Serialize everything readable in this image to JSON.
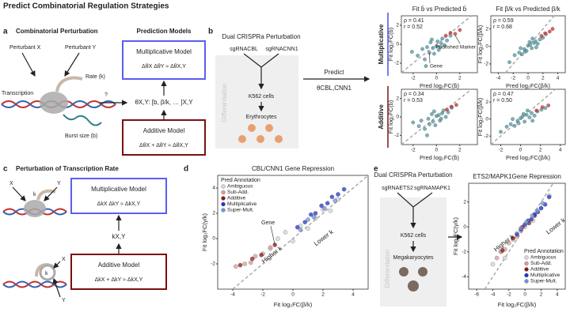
{
  "title": "Predict Combinatorial Regulation Strategies",
  "panel_a": {
    "label": "a",
    "heading": "Combinatorial Perturbation",
    "models_heading": "Prediction Models",
    "perturbant_x": "Perturbant X",
    "perturbant_y": "Perturbant Y",
    "rate": "Rate (k)",
    "transcription": "Transcription",
    "burst": "Burst size (b)",
    "question": "?",
    "mult_title": "Multiplicative Model",
    "mult_formula": "ΔθX ΔθY ≈ ΔθX,Y",
    "param": "θX,Y: [b, β/k, … ]X,Y",
    "add_title": "Additive Model",
    "add_formula": "ΔθX + ΔθY ≈ ΔθX,Y"
  },
  "panel_b": {
    "label": "b",
    "heading": "Dual CRISPRa Perturbation",
    "sgrna_1": "sgRNACBL",
    "sgrna_2": "sgRNACNN1",
    "cells": "K562 cells",
    "differentiation": "Differentiation",
    "product": "Erythrocytes",
    "predict": "Predict",
    "param": "θCBL,CNN1"
  },
  "panel_c": {
    "label": "c",
    "heading": "Perturbation of Transcription Rate",
    "x": "X",
    "y": "Y",
    "k": "k",
    "x2": "X",
    "y2": "Y",
    "k2": "k",
    "mult_title": "Multiplicative Model",
    "mult_formula": "ΔkX ΔkY ≈ ΔkX,Y",
    "rate": "kX,Y",
    "add_title": "Additive Model",
    "add_formula": "ΔkX + ΔkY ≈ ΔkX,Y"
  },
  "panel_d": {
    "label": "d"
  },
  "panel_e": {
    "label": "e",
    "heading": "Dual CRISPRa Perturbation",
    "sgrna_1": "sgRNAETS2",
    "sgrna_2": "sgRNAMAPK1",
    "cells": "K562 cells",
    "differentiation": "Differentiation",
    "product": "Megakaryocytes"
  },
  "chart_data": [
    {
      "type": "scatter",
      "title": "Fit b̄ vs Predicted b̄",
      "row_label": "Multiplicative",
      "row_color": "#4a4ee8",
      "x_label": "Pred log₂FC(b̄)",
      "y_label": "Fit log₂FC(b̄)",
      "annotations": [
        "ρ = 0.41",
        "r = 0.52"
      ],
      "xlim": [
        -3,
        3.5
      ],
      "ylim": [
        -3,
        3
      ],
      "xticks": [
        -2,
        0,
        2
      ],
      "yticks": [
        -2,
        0,
        2
      ],
      "series": [
        {
          "name": "Gene",
          "color": "#4d9aa6",
          "x": [
            -2.1,
            -1.6,
            -1.2,
            -1.0,
            -0.8,
            -0.6,
            -0.5,
            -0.3,
            -0.2,
            0,
            0.1,
            0.2,
            0.4,
            0.5,
            0.7,
            0.9,
            1.2,
            -0.9,
            -0.4,
            0.3
          ],
          "values": [
            -0.8,
            -1.2,
            -0.5,
            -1.6,
            -0.3,
            -0.9,
            0.2,
            -0.4,
            -1.0,
            -0.2,
            0.3,
            -0.6,
            0.1,
            0.6,
            -0.1,
            0.4,
            0.9,
            -2.3,
            0.5,
            -0.3
          ]
        },
        {
          "name": "Published Marker",
          "color": "#d42a2a",
          "x": [
            0.8,
            1.2,
            1.6,
            2.0
          ],
          "values": [
            0.9,
            1.2,
            1.1,
            1.5
          ]
        }
      ]
    },
    {
      "type": "scatter",
      "title": "Fit β/k vs Predicted β/k",
      "x_label": "Pred log₂FC(β/k)",
      "y_label": "Fit log₂FC(β/k)",
      "annotations": [
        "ρ = 0.59",
        "r = 0.68"
      ],
      "xlim": [
        -5,
        5
      ],
      "ylim": [
        -3,
        3.5
      ],
      "xticks": [
        -4,
        -2,
        0,
        2,
        4
      ],
      "yticks": [
        -2,
        0,
        2
      ],
      "series": [
        {
          "color": "#4d9aa6",
          "x": [
            -2.5,
            -1.8,
            -1.2,
            -0.8,
            -0.5,
            -0.2,
            0,
            0.3,
            0.5,
            0.8,
            1.0,
            1.3,
            1.6,
            2.0,
            -1.0,
            0.2,
            0.6,
            1.1,
            -0.4,
            2.4
          ],
          "values": [
            -1.8,
            -1.0,
            -0.7,
            -0.9,
            -0.3,
            -0.5,
            0.1,
            0.2,
            -0.2,
            0.4,
            0.6,
            0.3,
            0.8,
            1.0,
            -0.2,
            0.5,
            0.9,
            -0.1,
            -0.6,
            1.4
          ]
        },
        {
          "color": "#d42a2a",
          "x": [
            1.8,
            2.3,
            2.9,
            3.3
          ],
          "values": [
            1.2,
            1.5,
            1.7,
            2.0
          ]
        }
      ]
    },
    {
      "type": "scatter",
      "row_label": "Additive",
      "row_color": "#7a1414",
      "x_label": "Pred log₂FC(b̄)",
      "y_label": "Fit log₂FC(b̄)",
      "annotations": [
        "ρ = 0.34",
        "r = 0.53"
      ],
      "xlim": [
        -3,
        3.5
      ],
      "ylim": [
        -3,
        3
      ],
      "xticks": [
        -2,
        0,
        2
      ],
      "yticks": [
        -2,
        0,
        2
      ],
      "series": [
        {
          "color": "#4d9aa6",
          "x": [
            -2.0,
            -1.5,
            -1.3,
            -1.0,
            -0.7,
            -0.6,
            -0.4,
            -0.3,
            -0.1,
            0,
            0.2,
            0.3,
            0.5,
            0.6,
            0.8,
            1.0,
            -0.8,
            -0.2,
            0.4,
            1.3
          ],
          "values": [
            -0.6,
            -1.0,
            -0.4,
            -1.3,
            -0.2,
            -0.8,
            0.3,
            -0.5,
            -0.9,
            0.1,
            0.2,
            -0.4,
            0.4,
            0.7,
            0.0,
            0.5,
            -2.0,
            0.6,
            -0.2,
            1.0
          ]
        },
        {
          "color": "#d42a2a",
          "x": [
            0.9,
            1.3,
            1.7
          ],
          "values": [
            0.8,
            1.1,
            1.3
          ]
        }
      ]
    },
    {
      "type": "scatter",
      "x_label": "Pred log₂FC(β/k)",
      "y_label": "Fit log₂FC(β/k)",
      "annotations": [
        "ρ = 0.47",
        "r = 0.50"
      ],
      "xlim": [
        -3,
        4.5
      ],
      "ylim": [
        -3,
        3.5
      ],
      "xticks": [
        -2,
        0,
        2,
        4
      ],
      "yticks": [
        -2,
        0,
        2
      ],
      "series": [
        {
          "color": "#4d9aa6",
          "x": [
            -2.0,
            -1.4,
            -1.0,
            -0.6,
            -0.3,
            0,
            0.2,
            0.4,
            0.6,
            0.9,
            1.1,
            1.4,
            1.7,
            2.1,
            -0.8,
            0.3,
            0.7,
            1.2,
            -0.2,
            2.5
          ],
          "values": [
            -1.5,
            -0.9,
            -0.6,
            -0.8,
            -0.2,
            0.1,
            0.3,
            -0.3,
            0.5,
            0.2,
            0.7,
            0.4,
            0.9,
            1.1,
            0.0,
            0.6,
            1.0,
            -0.2,
            -0.5,
            1.3
          ]
        },
        {
          "color": "#d42a2a",
          "x": [
            1.6,
            2.2,
            2.8
          ],
          "values": [
            1.0,
            1.4,
            1.6
          ]
        }
      ]
    },
    {
      "type": "scatter",
      "title": "CBL/CNN1 Gene Repression",
      "x_label": "Fit log₂FC(β/k)",
      "y_label": "Fit log₂FC(γ/k)",
      "annotations": [
        "Gene",
        "Higher k",
        "Lower k"
      ],
      "legend_title": "Pred Annotation",
      "legend": "upper left",
      "xlim": [
        -5,
        5
      ],
      "ylim": [
        -4,
        5
      ],
      "xticks": [
        -4,
        -2,
        0,
        2,
        4
      ],
      "yticks": [
        -2,
        0,
        2,
        4
      ],
      "series": [
        {
          "name": "Ambiguous",
          "color": "#d6d6d6",
          "x": [
            -1,
            -0.5,
            0,
            0.5,
            1,
            1.5,
            2,
            2.5,
            3,
            -1.5
          ],
          "values": [
            0,
            0.5,
            -0.2,
            1.0,
            0.8,
            1.6,
            2.3,
            2.2,
            3.1,
            -0.8
          ]
        },
        {
          "name": "Sub-Add.",
          "color": "#e09a96",
          "x": [
            -3.8,
            -3.2,
            -2.8,
            -2.5,
            -2.0,
            -1.5
          ],
          "values": [
            -2.2,
            -2.0,
            -1.9,
            -1.4,
            -1.2,
            -0.7
          ]
        },
        {
          "name": "Additive",
          "color": "#8b1a1a",
          "x": [
            -3.5,
            -2.7,
            -2.1,
            -1.2
          ],
          "values": [
            -2.1,
            -1.6,
            -1.3,
            -0.5
          ]
        },
        {
          "name": "Multiplicative",
          "color": "#2233cc",
          "x": [
            0.3,
            0.8,
            1.2,
            1.5,
            1.9,
            2.3,
            2.6,
            3.0,
            3.4
          ],
          "values": [
            0.9,
            1.3,
            1.9,
            2.0,
            2.6,
            2.8,
            3.3,
            3.5,
            3.9
          ]
        },
        {
          "name": "Super-Mult.",
          "color": "#7394dc",
          "x": [
            0.5,
            1.0,
            1.4,
            2.1,
            2.8
          ],
          "values": [
            0.7,
            1.5,
            1.7,
            2.4,
            3.0
          ]
        }
      ]
    },
    {
      "type": "scatter",
      "title": "ETS2/MAPK1Gene Repression",
      "x_label": "Fit log₂FC(β/k)",
      "y_label": "Fit log₂FC(γ/k)",
      "annotations": [
        "Higher k",
        "Lower k"
      ],
      "legend_title": "Pred Annotation",
      "legend": "lower right",
      "xlim": [
        -7,
        5
      ],
      "ylim": [
        -5,
        3.5
      ],
      "xticks": [
        -6,
        -4,
        -2,
        0,
        2,
        4
      ],
      "yticks": [
        -4,
        -2,
        0,
        2
      ],
      "series": [
        {
          "name": "Ambiguous",
          "color": "#d6d6d6",
          "x": [
            -4,
            -3,
            -2.5,
            -1,
            0,
            1,
            2,
            3
          ],
          "values": [
            -3,
            -2,
            -2.5,
            -0.5,
            0,
            0.5,
            1.5,
            2.5
          ]
        },
        {
          "name": "Sub-Add.",
          "color": "#e09a96",
          "x": [
            -3.5,
            -3,
            -2.5,
            -2,
            -1.5,
            -1,
            -0.5
          ],
          "values": [
            -2.5,
            -2,
            -1.8,
            -1.3,
            -1,
            -0.8,
            -0.3
          ]
        },
        {
          "name": "Additive",
          "color": "#8b1a1a",
          "x": [
            -2.8,
            -1.5,
            -0.3,
            0.5,
            1.2
          ],
          "values": [
            -1.9,
            -0.9,
            0.0,
            0.3,
            0.9
          ]
        },
        {
          "name": "Multiplicative",
          "color": "#2233cc",
          "x": [
            -1,
            -0.5,
            0,
            0.4,
            0.8,
            1.2,
            1.6,
            2.0,
            2.5,
            3.0
          ],
          "values": [
            -0.6,
            -0.2,
            0.2,
            0.5,
            0.6,
            1.0,
            1.2,
            1.5,
            1.8,
            2.4
          ]
        },
        {
          "name": "Super-Mult.",
          "color": "#7394dc",
          "x": [
            -0.5,
            0.2,
            0.9,
            1.5,
            2.2
          ],
          "values": [
            -0.1,
            0.4,
            0.9,
            1.3,
            1.9
          ]
        }
      ]
    }
  ]
}
